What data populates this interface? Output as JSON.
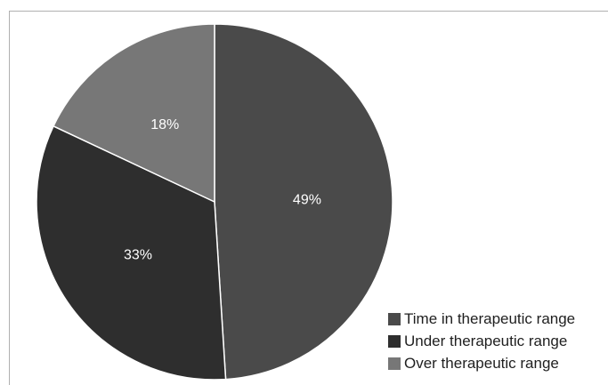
{
  "chart_data": {
    "type": "pie",
    "slices": [
      {
        "name": "Time in therapeutic range",
        "value": 49,
        "label": "49%",
        "color": "#4a4a4a"
      },
      {
        "name": "Under therapeutic range",
        "value": 33,
        "label": "33%",
        "color": "#2e2e2e"
      },
      {
        "name": "Over therapeutic range",
        "value": 18,
        "label": "18%",
        "color": "#777777"
      }
    ],
    "start": "top",
    "direction": "clockwise",
    "legend_position": "bottom-right"
  }
}
